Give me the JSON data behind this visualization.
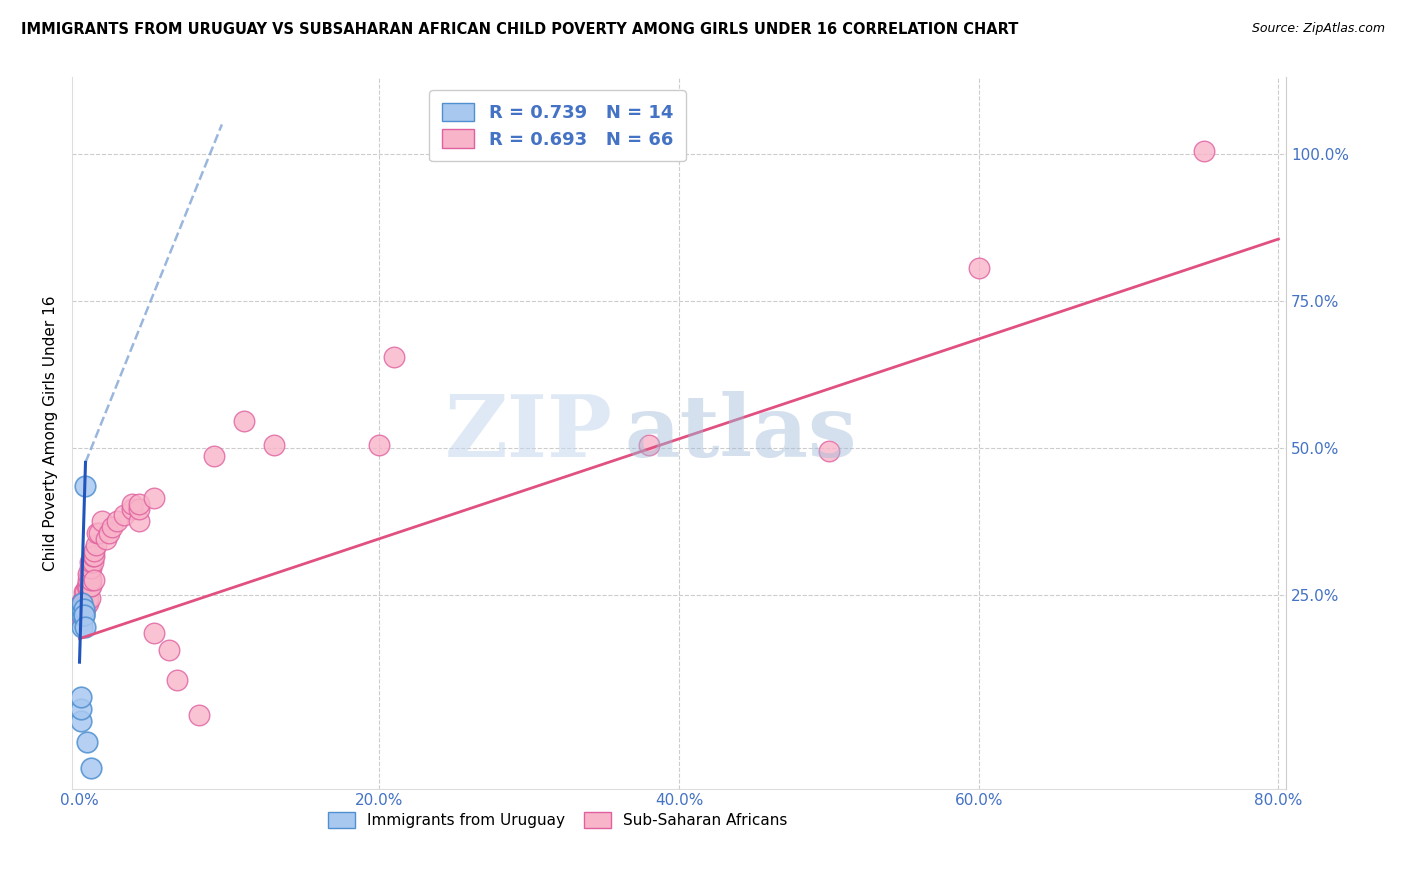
{
  "title": "IMMIGRANTS FROM URUGUAY VS SUBSAHARAN AFRICAN CHILD POVERTY AMONG GIRLS UNDER 16 CORRELATION CHART",
  "source": "Source: ZipAtlas.com",
  "ylabel": "Child Poverty Among Girls Under 16",
  "xlim": [
    -0.005,
    0.805
  ],
  "ylim": [
    -0.08,
    1.13
  ],
  "xtick_labels": [
    "0.0%",
    "20.0%",
    "40.0%",
    "60.0%",
    "80.0%"
  ],
  "xtick_values": [
    0.0,
    0.2,
    0.4,
    0.6,
    0.8
  ],
  "ytick_labels": [
    "25.0%",
    "50.0%",
    "75.0%",
    "100.0%"
  ],
  "ytick_values": [
    0.25,
    0.5,
    0.75,
    1.0
  ],
  "uruguay_color": "#a8c8f0",
  "uruguay_edge_color": "#5090d0",
  "subsaharan_color": "#f8b4c8",
  "subsaharan_edge_color": "#e060a0",
  "trend_blue_solid_color": "#2255bb",
  "trend_blue_dash_color": "#88aad8",
  "trend_pink_color": "#e05080",
  "R_uruguay": 0.739,
  "N_uruguay": 14,
  "R_subsaharan": 0.693,
  "N_subsaharan": 66,
  "watermark_zip": "ZIP",
  "watermark_atlas": "atlas",
  "legend_labels": [
    "Immigrants from Uruguay",
    "Sub-Saharan Africans"
  ],
  "uruguay_x": [
    0.001,
    0.001,
    0.001,
    0.002,
    0.002,
    0.002,
    0.002,
    0.003,
    0.003,
    0.003,
    0.004,
    0.004,
    0.005,
    0.008
  ],
  "uruguay_y": [
    0.035,
    0.055,
    0.075,
    0.195,
    0.215,
    0.225,
    0.235,
    0.215,
    0.225,
    0.215,
    0.435,
    0.195,
    0.0,
    -0.045
  ],
  "subsaharan_x": [
    0.001,
    0.001,
    0.001,
    0.002,
    0.002,
    0.002,
    0.002,
    0.003,
    0.003,
    0.003,
    0.003,
    0.004,
    0.004,
    0.004,
    0.004,
    0.005,
    0.005,
    0.005,
    0.006,
    0.006,
    0.006,
    0.006,
    0.006,
    0.007,
    0.007,
    0.007,
    0.007,
    0.007,
    0.007,
    0.008,
    0.008,
    0.008,
    0.008,
    0.009,
    0.009,
    0.01,
    0.01,
    0.01,
    0.011,
    0.012,
    0.013,
    0.015,
    0.018,
    0.02,
    0.022,
    0.025,
    0.03,
    0.035,
    0.035,
    0.04,
    0.04,
    0.04,
    0.05,
    0.05,
    0.06,
    0.065,
    0.08,
    0.09,
    0.11,
    0.13,
    0.2,
    0.21,
    0.38,
    0.5,
    0.6,
    0.75
  ],
  "subsaharan_y": [
    0.215,
    0.225,
    0.235,
    0.205,
    0.215,
    0.225,
    0.235,
    0.225,
    0.235,
    0.245,
    0.255,
    0.225,
    0.235,
    0.245,
    0.255,
    0.235,
    0.245,
    0.265,
    0.235,
    0.245,
    0.265,
    0.275,
    0.285,
    0.245,
    0.265,
    0.275,
    0.285,
    0.295,
    0.305,
    0.265,
    0.275,
    0.295,
    0.305,
    0.305,
    0.315,
    0.275,
    0.315,
    0.325,
    0.335,
    0.355,
    0.355,
    0.375,
    0.345,
    0.355,
    0.365,
    0.375,
    0.385,
    0.395,
    0.405,
    0.375,
    0.395,
    0.405,
    0.415,
    0.185,
    0.155,
    0.105,
    0.045,
    0.485,
    0.545,
    0.505,
    0.505,
    0.655,
    0.505,
    0.495,
    0.805,
    1.005
  ],
  "trend_pink_x0": 0.0,
  "trend_pink_y0": 0.175,
  "trend_pink_x1": 0.8,
  "trend_pink_y1": 0.855,
  "trend_blue_solid_x0": 0.0,
  "trend_blue_solid_y0": 0.135,
  "trend_blue_solid_x1": 0.004,
  "trend_blue_solid_y1": 0.475,
  "trend_blue_dash_x0": 0.004,
  "trend_blue_dash_y0": 0.475,
  "trend_blue_dash_x1": 0.095,
  "trend_blue_dash_y1": 1.05
}
